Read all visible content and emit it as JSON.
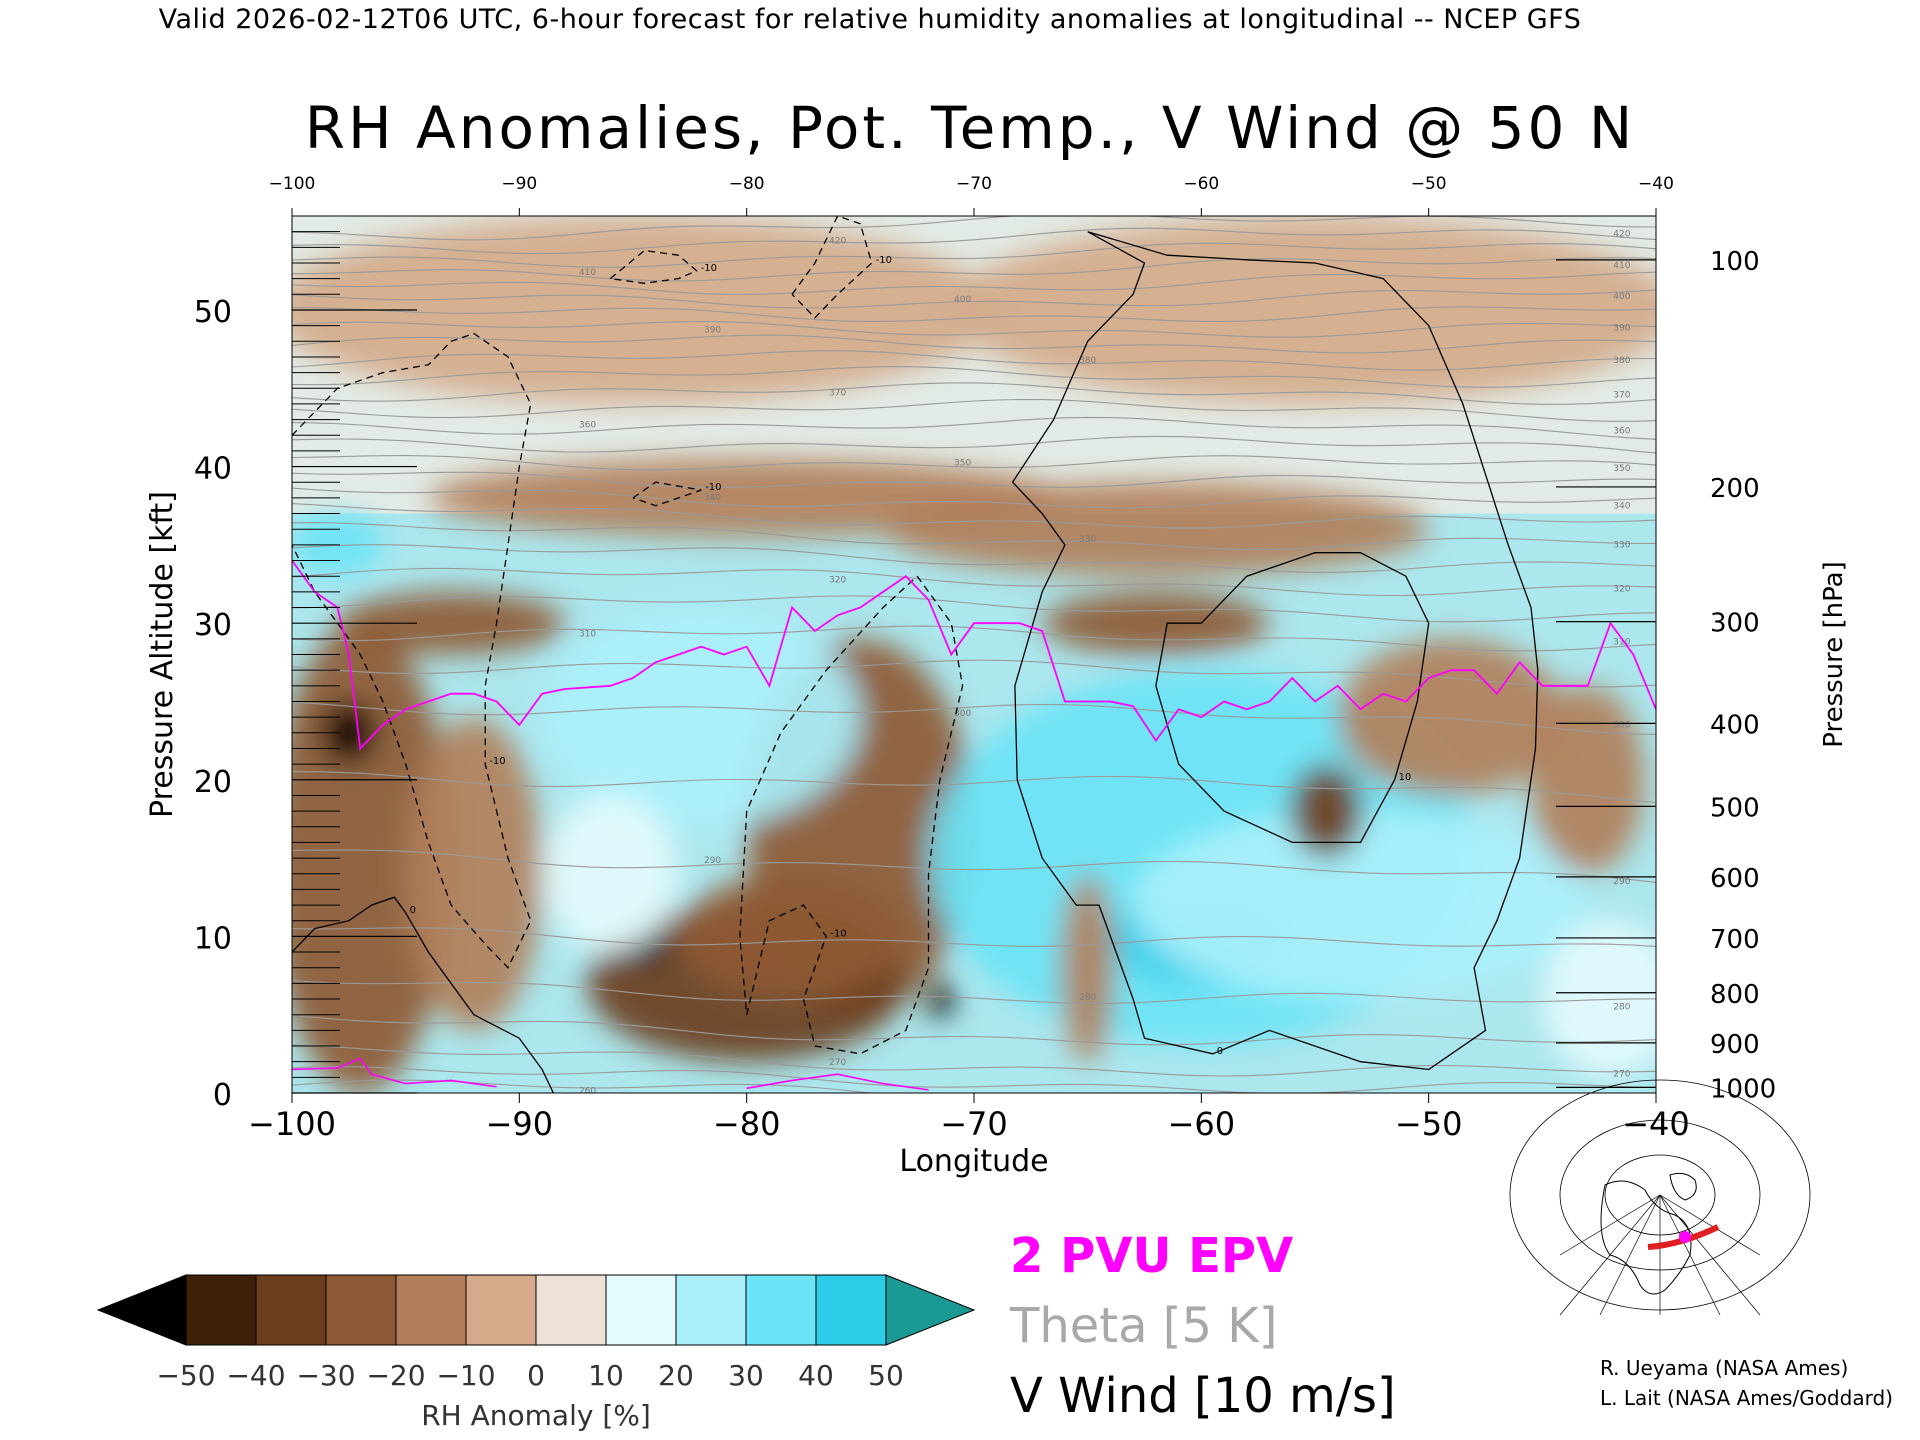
{
  "header": {
    "text": "Valid 2026-02-12T06 UTC, 6-hour forecast for relative humidity anomalies at longitudinal -- NCEP GFS"
  },
  "title": "RH Anomalies, Pot. Temp., V Wind @ 50 N",
  "chart_data": {
    "type": "heatmap",
    "title": "RH Anomalies, Pot. Temp., V Wind @ 50 N",
    "xlabel": "Longitude",
    "ylabel": "Pressure Altitude [kft]",
    "y2label": "Pressure [hPa]",
    "xlim": [
      -100,
      -40
    ],
    "ylim": [
      0,
      56
    ],
    "x_ticks": [
      -100,
      -90,
      -80,
      -70,
      -60,
      -50,
      -40
    ],
    "y_ticks": [
      0,
      10,
      20,
      30,
      40,
      50
    ],
    "pressure_ticks": [
      {
        "label": "100",
        "kft": 53.2
      },
      {
        "label": "200",
        "kft": 38.7
      },
      {
        "label": "300",
        "kft": 30.1
      },
      {
        "label": "400",
        "kft": 23.6
      },
      {
        "label": "500",
        "kft": 18.3
      },
      {
        "label": "600",
        "kft": 13.8
      },
      {
        "label": "700",
        "kft": 9.9
      },
      {
        "label": "800",
        "kft": 6.4
      },
      {
        "label": "900",
        "kft": 3.2
      },
      {
        "label": "1000",
        "kft": 0.36
      }
    ],
    "colorbar": {
      "label": "RH Anomaly [%]",
      "ticks": [
        "-50",
        "-40",
        "-30",
        "-20",
        "-10",
        "0",
        "10",
        "20",
        "30",
        "40",
        "50"
      ],
      "colors": [
        "#000000",
        "#3e1f08",
        "#6b3d1c",
        "#8e5a35",
        "#b17f5a",
        "#d4aa8a",
        "#eee2d8",
        "#e4fafc",
        "#aaf0fb",
        "#6ae4f6",
        "#2ccce8",
        "#0aa6c6",
        "#007e96",
        "#1a9a92"
      ]
    },
    "rh_blobs": [
      {
        "x": -85,
        "y": 50,
        "rx": 16,
        "ry": 6,
        "v": -3
      },
      {
        "x": -55,
        "y": 50,
        "rx": 16,
        "ry": 6,
        "v": -3
      },
      {
        "x": -80,
        "y": 38,
        "rx": 14,
        "ry": 2.5,
        "v": -12
      },
      {
        "x": -62,
        "y": 36,
        "rx": 12,
        "ry": 3,
        "v": -12
      },
      {
        "x": -93,
        "y": 30,
        "rx": 5,
        "ry": 2,
        "v": -30
      },
      {
        "x": -62,
        "y": 30,
        "rx": 5,
        "ry": 2,
        "v": -25
      },
      {
        "x": -75,
        "y": 17,
        "rx": 5,
        "ry": 12,
        "v": -22
      },
      {
        "x": -80,
        "y": 7,
        "rx": 7,
        "ry": 5,
        "v": -38
      },
      {
        "x": -78,
        "y": 10,
        "rx": 5,
        "ry": 4,
        "v": -30
      },
      {
        "x": -97,
        "y": 15,
        "rx": 4,
        "ry": 15,
        "v": -25
      },
      {
        "x": -97.5,
        "y": 23,
        "rx": 1.2,
        "ry": 2,
        "v": -55
      },
      {
        "x": -92,
        "y": 14,
        "rx": 3,
        "ry": 10,
        "v": -12
      },
      {
        "x": -84.5,
        "y": 9.5,
        "rx": 1,
        "ry": 1.2,
        "v": -55
      },
      {
        "x": -71.5,
        "y": 6,
        "rx": 0.6,
        "ry": 1.2,
        "v": -55
      },
      {
        "x": -82,
        "y": 24,
        "rx": 7,
        "ry": 7,
        "v": 22
      },
      {
        "x": -86,
        "y": 14,
        "rx": 3,
        "ry": 5,
        "v": 18
      },
      {
        "x": -60,
        "y": 15,
        "rx": 12,
        "ry": 12,
        "v": 30
      },
      {
        "x": -60,
        "y": 10,
        "rx": 4,
        "ry": 3,
        "v": 40
      },
      {
        "x": -53,
        "y": 12,
        "rx": 10,
        "ry": 6,
        "v": 22
      },
      {
        "x": -42,
        "y": 6,
        "rx": 3,
        "ry": 5,
        "v": 14
      },
      {
        "x": -98,
        "y": 35,
        "rx": 2,
        "ry": 2,
        "v": 30
      },
      {
        "x": -49,
        "y": 24,
        "rx": 5,
        "ry": 5,
        "v": -20
      },
      {
        "x": -54.5,
        "y": 18,
        "rx": 1.6,
        "ry": 3,
        "v": -32
      },
      {
        "x": -43,
        "y": 20,
        "rx": 2.5,
        "ry": 6,
        "v": -20
      },
      {
        "x": -65,
        "y": 8,
        "rx": 1.2,
        "ry": 6,
        "v": -12
      }
    ],
    "theta": {
      "levels": [
        260,
        265,
        270,
        275,
        280,
        285,
        290,
        295,
        300,
        305,
        310,
        315,
        320,
        325,
        330,
        335,
        340,
        345,
        350,
        355,
        360,
        365,
        370,
        375,
        380,
        385,
        390,
        395,
        400,
        405,
        410,
        415,
        420,
        425
      ],
      "labels": [
        "260",
        "270",
        "280",
        "290",
        "300",
        "310",
        "320",
        "330",
        "340",
        "350",
        "360",
        "370",
        "380",
        "390",
        "400",
        "410",
        "420"
      ],
      "alt_west": [
        0.5,
        1.2,
        2.5,
        4.5,
        7.0,
        10.5,
        15.5,
        20.5,
        25.0,
        27.5,
        29.5,
        31.5,
        33.2,
        34.6,
        35.9,
        37.1,
        38.3,
        39.5,
        40.6,
        41.7,
        42.8,
        43.8,
        44.8,
        45.8,
        46.8,
        47.8,
        48.7,
        49.6,
        50.5,
        51.4,
        52.3,
        53.2,
        54.1,
        55.0
      ],
      "alt_east": [
        -1.0,
        0.3,
        1.2,
        3.0,
        5.5,
        9.0,
        13.5,
        19.0,
        23.5,
        26.5,
        28.8,
        30.6,
        32.2,
        33.6,
        35.0,
        36.3,
        37.5,
        38.7,
        39.9,
        41.1,
        42.3,
        43.5,
        44.6,
        45.7,
        46.8,
        47.9,
        48.9,
        49.9,
        50.9,
        51.9,
        52.9,
        53.9,
        54.9,
        55.9
      ]
    },
    "series": [
      {
        "name": "2 PVU EPV",
        "x": [
          -100,
          -99,
          -98,
          -97.5,
          -97,
          -96,
          -95,
          -94,
          -93,
          -92,
          -91,
          -90,
          -89,
          -88,
          -86,
          -85,
          -84,
          -83,
          -82,
          -81,
          -80,
          -79,
          -78,
          -77,
          -76,
          -75,
          -74,
          -73,
          -72,
          -71,
          -70,
          -69,
          -68,
          -67,
          -66,
          -65,
          -64,
          -63,
          -62,
          -61,
          -60,
          -59,
          -58,
          -57,
          -56,
          -55,
          -54,
          -53,
          -52,
          -51,
          -50,
          -49,
          -48,
          -47,
          -46,
          -45,
          -44,
          -43,
          -42,
          -41,
          -40
        ],
        "y": [
          34,
          32,
          31,
          28,
          22,
          23.5,
          24.5,
          25,
          25.5,
          25.5,
          25,
          23.5,
          25.5,
          25.8,
          26,
          26.5,
          27.5,
          28,
          28.5,
          28,
          28.5,
          26,
          31,
          29.5,
          30.5,
          31,
          32,
          33,
          31.5,
          28,
          30,
          30,
          30,
          29.5,
          25,
          25,
          25,
          24.7,
          22.5,
          24.5,
          24,
          25,
          24.5,
          25,
          26.5,
          25,
          26,
          24.5,
          25.5,
          25,
          26.5,
          27,
          27,
          25.5,
          27.5,
          26,
          26,
          26,
          30,
          28,
          24.5
        ]
      }
    ],
    "vwind_contours": [
      {
        "label": "0",
        "style": "solid",
        "points": [
          [
            -65,
            55
          ],
          [
            -61.5,
            53.5
          ],
          [
            -58,
            53.2
          ],
          [
            -55,
            53
          ],
          [
            -52,
            52
          ],
          [
            -50,
            49
          ],
          [
            -48.5,
            44
          ],
          [
            -47.5,
            39.5
          ],
          [
            -46.5,
            35
          ],
          [
            -45.5,
            31
          ],
          [
            -45.2,
            27
          ],
          [
            -45.3,
            22
          ],
          [
            -46,
            15
          ],
          [
            -47,
            11
          ],
          [
            -48,
            8
          ],
          [
            -47.5,
            4
          ],
          [
            -50,
            1.5
          ],
          [
            -53,
            2
          ],
          [
            -57,
            4
          ],
          [
            -59.5,
            2.5
          ],
          [
            -61,
            3
          ],
          [
            -62.5,
            3.5
          ],
          [
            -63,
            6
          ],
          [
            -64,
            10
          ],
          [
            -64.5,
            12
          ],
          [
            -65.5,
            12
          ],
          [
            -66,
            13
          ],
          [
            -67,
            15
          ],
          [
            -68.1,
            20
          ],
          [
            -68.2,
            26
          ],
          [
            -67,
            32
          ],
          [
            -66,
            35
          ],
          [
            -67,
            37
          ],
          [
            -68.3,
            39
          ],
          [
            -66.5,
            43
          ],
          [
            -65,
            48
          ],
          [
            -63,
            51
          ],
          [
            -62.5,
            53
          ],
          [
            -65,
            55
          ]
        ]
      },
      {
        "label": "10",
        "style": "solid",
        "points": [
          [
            -60,
            30
          ],
          [
            -58,
            33
          ],
          [
            -55,
            34.5
          ],
          [
            -53,
            34.5
          ],
          [
            -51,
            33
          ],
          [
            -50,
            30
          ],
          [
            -50.5,
            25
          ],
          [
            -51.5,
            20
          ],
          [
            -53,
            16
          ],
          [
            -56,
            16
          ],
          [
            -59,
            18
          ],
          [
            -61,
            21
          ],
          [
            -62,
            26
          ],
          [
            -61.5,
            30
          ],
          [
            -60,
            30
          ]
        ]
      },
      {
        "label": "0",
        "style": "solid",
        "points": [
          [
            -100,
            9
          ],
          [
            -99,
            10.5
          ],
          [
            -97.5,
            11
          ],
          [
            -96.5,
            12
          ],
          [
            -95.5,
            12.5
          ],
          [
            -95,
            11.5
          ],
          [
            -94,
            9
          ],
          [
            -92,
            5
          ],
          [
            -90,
            3.5
          ],
          [
            -89,
            1.5
          ],
          [
            -88.5,
            0
          ]
        ]
      },
      {
        "label": "-10",
        "style": "dashed",
        "points": [
          [
            -100,
            42
          ],
          [
            -98,
            45
          ],
          [
            -96,
            46
          ],
          [
            -94,
            46.5
          ],
          [
            -93,
            48
          ],
          [
            -92,
            48.5
          ],
          [
            -90.5,
            47
          ],
          [
            -89.5,
            44
          ],
          [
            -90,
            40
          ],
          [
            -90.5,
            35
          ],
          [
            -91,
            30
          ],
          [
            -91.5,
            26
          ],
          [
            -91.5,
            21
          ],
          [
            -90.5,
            15
          ],
          [
            -89.5,
            11
          ],
          [
            -90.5,
            8
          ],
          [
            -91.5,
            9.5
          ],
          [
            -93,
            12
          ],
          [
            -94,
            16
          ],
          [
            -95,
            21
          ],
          [
            -96,
            25
          ],
          [
            -97,
            28
          ],
          [
            -98,
            30
          ],
          [
            -99,
            32
          ],
          [
            -100,
            35
          ]
        ]
      },
      {
        "label": "-10",
        "style": "dashed",
        "points": [
          [
            -72.5,
            33
          ],
          [
            -71,
            30
          ],
          [
            -70.5,
            26
          ],
          [
            -71.5,
            20
          ],
          [
            -72,
            14
          ],
          [
            -72,
            8
          ],
          [
            -73,
            4
          ],
          [
            -75,
            2.5
          ],
          [
            -77,
            3
          ],
          [
            -77.5,
            6
          ],
          [
            -76.5,
            10
          ],
          [
            -77.5,
            12
          ],
          [
            -79,
            11
          ],
          [
            -79.5,
            8
          ],
          [
            -80,
            5
          ],
          [
            -80.3,
            10
          ],
          [
            -80,
            18
          ],
          [
            -78.5,
            23
          ],
          [
            -76.5,
            27
          ],
          [
            -74,
            31
          ],
          [
            -72.5,
            33
          ]
        ]
      },
      {
        "label": "-10",
        "style": "dashed",
        "points": [
          [
            -78,
            51
          ],
          [
            -77,
            53
          ],
          [
            -76,
            56
          ],
          [
            -75,
            55.5
          ],
          [
            -74.5,
            53
          ],
          [
            -76,
            51
          ],
          [
            -77,
            49.5
          ],
          [
            -78,
            51
          ]
        ]
      },
      {
        "label": "-10",
        "style": "dashed",
        "points": [
          [
            -86,
            52
          ],
          [
            -84.5,
            53.8
          ],
          [
            -83,
            53.5
          ],
          [
            -82.2,
            52.5
          ],
          [
            -83,
            52
          ],
          [
            -84.5,
            51.7
          ],
          [
            -86,
            52
          ]
        ]
      },
      {
        "label": "-10",
        "style": "dashed",
        "points": [
          [
            -85,
            38
          ],
          [
            -84,
            39
          ],
          [
            -82,
            38.5
          ],
          [
            -84,
            37.5
          ],
          [
            -85,
            38
          ]
        ]
      }
    ]
  },
  "legend": {
    "epv": "2 PVU EPV",
    "theta": "Theta [5 K]",
    "vwind": "V Wind [10 m/s]"
  },
  "credits": {
    "line1": "R. Ueyama (NASA Ames)",
    "line2": "L. Lait (NASA Ames/Goddard)"
  },
  "colors": {
    "epv": "#ff00ff",
    "theta": "#9a9a9a",
    "vwind": "#000000"
  }
}
